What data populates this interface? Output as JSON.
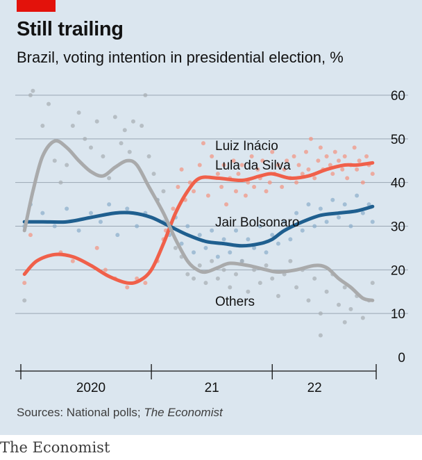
{
  "header": {
    "title": "Still trailing",
    "subtitle": "Brazil, voting intention in presidential election, %"
  },
  "footer": {
    "source_prefix": "Sources: National polls; ",
    "source_italic": "The Economist",
    "brand": "The Economist"
  },
  "colors": {
    "lula": "#f0604a",
    "bolsonaro": "#1f5f8f",
    "others": "#a9aaab",
    "lula_dots": "#f4927f",
    "bolsonaro_dots": "#8aaccb",
    "others_dots": "#a6acb2",
    "background": "#dbe6ef",
    "grid": "#9aa7b3",
    "brand_red": "#e3120b"
  },
  "chart_data": {
    "type": "line",
    "x_unit": "year",
    "xlim": [
      2019.42,
      2022.36
    ],
    "ylim": [
      0,
      60
    ],
    "yticks": [
      0,
      10,
      20,
      30,
      40,
      50,
      60
    ],
    "ytick_labels": [
      "0",
      "10",
      "20",
      "30",
      "40",
      "50",
      "60"
    ],
    "grid": true,
    "year_labels": [
      {
        "label": "2020",
        "x": 2020.0
      },
      {
        "label": "21",
        "x": 2021.0
      },
      {
        "label": "22",
        "x": 2021.85
      }
    ],
    "year_boundaries": [
      2019.42,
      2020.5,
      2021.5,
      2022.36
    ],
    "series": [
      {
        "name": "Luiz Inácio Lula da Silva",
        "name_lines": [
          "Luiz Inácio",
          "Lula da Silva"
        ],
        "color_key": "lula",
        "points": [
          [
            2019.45,
            19
          ],
          [
            2019.55,
            22
          ],
          [
            2019.7,
            23.5
          ],
          [
            2019.85,
            23
          ],
          [
            2020.0,
            21
          ],
          [
            2020.15,
            18.5
          ],
          [
            2020.3,
            17
          ],
          [
            2020.4,
            17.5
          ],
          [
            2020.5,
            20
          ],
          [
            2020.6,
            26
          ],
          [
            2020.7,
            33
          ],
          [
            2020.8,
            38
          ],
          [
            2020.9,
            41
          ],
          [
            2021.05,
            41
          ],
          [
            2021.25,
            40.5
          ],
          [
            2021.4,
            41.5
          ],
          [
            2021.5,
            42
          ],
          [
            2021.65,
            41
          ],
          [
            2021.8,
            41.5
          ],
          [
            2021.95,
            43
          ],
          [
            2022.1,
            44
          ],
          [
            2022.2,
            44
          ],
          [
            2022.33,
            44.5
          ]
        ]
      },
      {
        "name": "Jair Bolsonaro",
        "color_key": "bolsonaro",
        "points": [
          [
            2019.45,
            31
          ],
          [
            2019.6,
            31
          ],
          [
            2019.8,
            31
          ],
          [
            2020.0,
            32
          ],
          [
            2020.2,
            33
          ],
          [
            2020.35,
            33
          ],
          [
            2020.5,
            32
          ],
          [
            2020.65,
            30
          ],
          [
            2020.8,
            28
          ],
          [
            2020.95,
            26.5
          ],
          [
            2021.1,
            26
          ],
          [
            2021.25,
            25.5
          ],
          [
            2021.4,
            26
          ],
          [
            2021.5,
            27
          ],
          [
            2021.6,
            29
          ],
          [
            2021.75,
            31
          ],
          [
            2021.9,
            32.5
          ],
          [
            2022.05,
            33
          ],
          [
            2022.2,
            33.5
          ],
          [
            2022.33,
            34.5
          ]
        ]
      },
      {
        "name": "Others",
        "color_key": "others",
        "points": [
          [
            2019.45,
            29
          ],
          [
            2019.52,
            38
          ],
          [
            2019.6,
            46
          ],
          [
            2019.7,
            49.5
          ],
          [
            2019.8,
            48
          ],
          [
            2019.9,
            45
          ],
          [
            2020.0,
            42.5
          ],
          [
            2020.1,
            41.5
          ],
          [
            2020.2,
            43.5
          ],
          [
            2020.3,
            45
          ],
          [
            2020.38,
            44
          ],
          [
            2020.48,
            39
          ],
          [
            2020.6,
            33
          ],
          [
            2020.7,
            27
          ],
          [
            2020.8,
            22
          ],
          [
            2020.88,
            20
          ],
          [
            2020.95,
            19.5
          ],
          [
            2021.05,
            20.5
          ],
          [
            2021.15,
            21.5
          ],
          [
            2021.3,
            21
          ],
          [
            2021.45,
            20
          ],
          [
            2021.55,
            19.5
          ],
          [
            2021.7,
            20
          ],
          [
            2021.85,
            21
          ],
          [
            2021.95,
            20.5
          ],
          [
            2022.05,
            18
          ],
          [
            2022.15,
            16
          ],
          [
            2022.25,
            13.5
          ],
          [
            2022.33,
            13
          ]
        ]
      }
    ],
    "polls": {
      "lula": [
        [
          2019.45,
          17
        ],
        [
          2019.5,
          28
        ],
        [
          2019.75,
          24
        ],
        [
          2019.85,
          22
        ],
        [
          2020.05,
          25
        ],
        [
          2020.12,
          20
        ],
        [
          2020.2,
          18
        ],
        [
          2020.3,
          16
        ],
        [
          2020.38,
          18
        ],
        [
          2020.45,
          17
        ],
        [
          2020.55,
          22
        ],
        [
          2020.6,
          27
        ],
        [
          2020.62,
          29
        ],
        [
          2020.68,
          34
        ],
        [
          2020.72,
          39
        ],
        [
          2020.75,
          43
        ],
        [
          2020.78,
          36
        ],
        [
          2020.82,
          40
        ],
        [
          2020.85,
          38
        ],
        [
          2020.9,
          44
        ],
        [
          2020.93,
          49
        ],
        [
          2020.97,
          37
        ],
        [
          2021.0,
          46
        ],
        [
          2021.05,
          42
        ],
        [
          2021.08,
          39
        ],
        [
          2021.1,
          44
        ],
        [
          2021.12,
          35
        ],
        [
          2021.15,
          41
        ],
        [
          2021.18,
          45
        ],
        [
          2021.2,
          38
        ],
        [
          2021.22,
          42
        ],
        [
          2021.25,
          44
        ],
        [
          2021.28,
          37
        ],
        [
          2021.3,
          40
        ],
        [
          2021.33,
          46
        ],
        [
          2021.35,
          39
        ],
        [
          2021.38,
          43
        ],
        [
          2021.4,
          41
        ],
        [
          2021.42,
          45
        ],
        [
          2021.45,
          38
        ],
        [
          2021.48,
          40
        ],
        [
          2021.5,
          47
        ],
        [
          2021.52,
          42
        ],
        [
          2021.55,
          44
        ],
        [
          2021.58,
          39
        ],
        [
          2021.6,
          43
        ],
        [
          2021.62,
          45
        ],
        [
          2021.65,
          41
        ],
        [
          2021.68,
          46
        ],
        [
          2021.7,
          40
        ],
        [
          2021.72,
          44
        ],
        [
          2021.75,
          42
        ],
        [
          2021.78,
          47
        ],
        [
          2021.8,
          43
        ],
        [
          2021.82,
          50
        ],
        [
          2021.85,
          41
        ],
        [
          2021.88,
          45
        ],
        [
          2021.9,
          48
        ],
        [
          2021.92,
          43
        ],
        [
          2021.95,
          46
        ],
        [
          2021.98,
          44
        ],
        [
          2022.0,
          42
        ],
        [
          2022.02,
          47
        ],
        [
          2022.05,
          45
        ],
        [
          2022.08,
          43
        ],
        [
          2022.1,
          46
        ],
        [
          2022.12,
          41
        ],
        [
          2022.15,
          44
        ],
        [
          2022.18,
          48
        ],
        [
          2022.2,
          43
        ],
        [
          2022.22,
          45
        ],
        [
          2022.25,
          40
        ],
        [
          2022.28,
          46
        ],
        [
          2022.3,
          44
        ],
        [
          2022.33,
          42
        ]
      ],
      "bolsonaro": [
        [
          2019.45,
          30
        ],
        [
          2019.5,
          35
        ],
        [
          2019.6,
          33
        ],
        [
          2019.7,
          30
        ],
        [
          2019.8,
          34
        ],
        [
          2019.9,
          29
        ],
        [
          2020.0,
          33
        ],
        [
          2020.08,
          31
        ],
        [
          2020.15,
          35
        ],
        [
          2020.22,
          28
        ],
        [
          2020.3,
          34
        ],
        [
          2020.38,
          30
        ],
        [
          2020.45,
          33
        ],
        [
          2020.55,
          36
        ],
        [
          2020.6,
          31
        ],
        [
          2020.65,
          28
        ],
        [
          2020.7,
          32
        ],
        [
          2020.75,
          26
        ],
        [
          2020.8,
          30
        ],
        [
          2020.85,
          24
        ],
        [
          2020.9,
          28
        ],
        [
          2020.95,
          25
        ],
        [
          2021.0,
          29
        ],
        [
          2021.05,
          23
        ],
        [
          2021.1,
          27
        ],
        [
          2021.15,
          24
        ],
        [
          2021.2,
          29
        ],
        [
          2021.25,
          22
        ],
        [
          2021.3,
          27
        ],
        [
          2021.35,
          25
        ],
        [
          2021.4,
          30
        ],
        [
          2021.45,
          24
        ],
        [
          2021.5,
          28
        ],
        [
          2021.55,
          26
        ],
        [
          2021.6,
          31
        ],
        [
          2021.65,
          27
        ],
        [
          2021.7,
          33
        ],
        [
          2021.75,
          29
        ],
        [
          2021.8,
          35
        ],
        [
          2021.85,
          30
        ],
        [
          2021.9,
          34
        ],
        [
          2021.95,
          31
        ],
        [
          2022.0,
          36
        ],
        [
          2022.05,
          32
        ],
        [
          2022.1,
          35
        ],
        [
          2022.15,
          30
        ],
        [
          2022.2,
          37
        ],
        [
          2022.25,
          33
        ],
        [
          2022.3,
          35
        ],
        [
          2022.33,
          31
        ]
      ],
      "others": [
        [
          2019.45,
          13
        ],
        [
          2019.5,
          60
        ],
        [
          2019.52,
          61
        ],
        [
          2019.6,
          53
        ],
        [
          2019.65,
          58
        ],
        [
          2019.7,
          45
        ],
        [
          2019.75,
          40
        ],
        [
          2019.8,
          44
        ],
        [
          2019.85,
          53
        ],
        [
          2019.9,
          56
        ],
        [
          2019.95,
          50
        ],
        [
          2020.0,
          48
        ],
        [
          2020.05,
          54
        ],
        [
          2020.1,
          46
        ],
        [
          2020.15,
          41
        ],
        [
          2020.2,
          55
        ],
        [
          2020.25,
          49
        ],
        [
          2020.28,
          52
        ],
        [
          2020.32,
          47
        ],
        [
          2020.35,
          54
        ],
        [
          2020.42,
          53
        ],
        [
          2020.45,
          60
        ],
        [
          2020.48,
          46
        ],
        [
          2020.52,
          42
        ],
        [
          2020.55,
          36
        ],
        [
          2020.6,
          38
        ],
        [
          2020.65,
          30
        ],
        [
          2020.7,
          25
        ],
        [
          2020.75,
          23
        ],
        [
          2020.8,
          19
        ],
        [
          2020.85,
          18
        ],
        [
          2020.9,
          21
        ],
        [
          2020.95,
          17
        ],
        [
          2021.0,
          22
        ],
        [
          2021.05,
          18
        ],
        [
          2021.1,
          20
        ],
        [
          2021.15,
          16
        ],
        [
          2021.2,
          19
        ],
        [
          2021.25,
          22
        ],
        [
          2021.3,
          15
        ],
        [
          2021.35,
          20
        ],
        [
          2021.4,
          17
        ],
        [
          2021.45,
          21
        ],
        [
          2021.5,
          18
        ],
        [
          2021.55,
          14
        ],
        [
          2021.6,
          19
        ],
        [
          2021.65,
          22
        ],
        [
          2021.7,
          16
        ],
        [
          2021.75,
          20
        ],
        [
          2021.8,
          13
        ],
        [
          2021.85,
          18
        ],
        [
          2021.9,
          10
        ],
        [
          2021.95,
          15
        ],
        [
          2022.0,
          19
        ],
        [
          2022.05,
          12
        ],
        [
          2022.1,
          16
        ],
        [
          2022.15,
          11
        ],
        [
          2022.2,
          14
        ],
        [
          2022.25,
          9
        ],
        [
          2022.3,
          13
        ],
        [
          2022.33,
          17
        ],
        [
          2021.9,
          5
        ],
        [
          2022.1,
          8
        ]
      ]
    }
  }
}
